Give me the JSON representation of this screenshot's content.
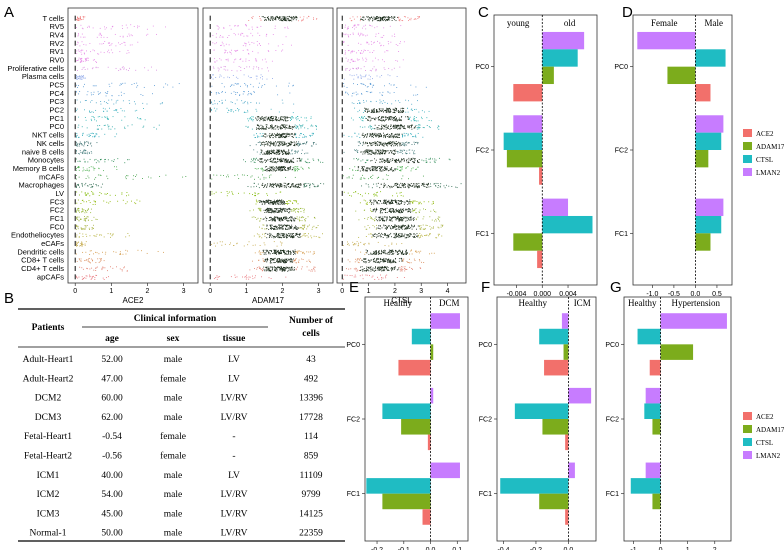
{
  "panel_labels": {
    "A": "A",
    "B": "B",
    "C": "C",
    "D": "D",
    "E": "E",
    "F": "F",
    "G": "G"
  },
  "chart_data": [
    {
      "id": "A",
      "type": "scatter",
      "title": "Gene expression by cell type (jitter/strip plot)",
      "cell_types": [
        "T cells",
        "RV5",
        "RV4",
        "RV2",
        "RV1",
        "RV0",
        "Proliferative cells",
        "Plasma cells",
        "PC5",
        "PC4",
        "PC3",
        "PC2",
        "PC1",
        "PC0",
        "NKT cells",
        "NK cells",
        "naive B cells",
        "Monocytes",
        "Memory B cells",
        "mCAFs",
        "Macrophages",
        "LV",
        "FC3",
        "FC2",
        "FC1",
        "FC0",
        "Endotheliocytes",
        "eCAFs",
        "Dendritic cells",
        "CD8+ T cells",
        "CD4+ T cells",
        "apCAFs"
      ],
      "colors": [
        "#f08080",
        "#e68ae6",
        "#e68ae6",
        "#e68ae6",
        "#e68ae6",
        "#e68ae6",
        "#d98de0",
        "#8fa8e8",
        "#5b9bd5",
        "#5b9bd5",
        "#4da6c8",
        "#3fb0c0",
        "#33b5b5",
        "#2aa7a7",
        "#2ca9b9",
        "#3a6e6e",
        "#4a8080",
        "#2e8b57",
        "#4caf50",
        "#43a047",
        "#2d6a4f",
        "#7fb800",
        "#8db600",
        "#92b530",
        "#9bb23a",
        "#a8b040",
        "#b5b03a",
        "#c4a94a",
        "#d49a4a",
        "#d98b5a",
        "#e07b6a",
        "#e8737a"
      ],
      "genes": [
        {
          "name": "ACE2",
          "xticks": [
            0,
            1,
            2,
            3
          ],
          "xlim": [
            -0.2,
            3.4
          ],
          "mean": [
            0,
            0,
            0,
            0,
            0,
            0,
            0,
            0,
            0,
            0,
            0,
            0,
            0,
            0.3,
            0,
            0,
            0,
            0,
            0,
            0,
            0,
            0,
            0,
            0,
            0,
            0,
            0,
            0,
            0,
            0,
            0,
            0
          ],
          "max": [
            0.3,
            2.5,
            2.5,
            1.9,
            1.8,
            0.6,
            2.5,
            0.3,
            3.2,
            2.5,
            2.5,
            2.0,
            2.0,
            2.5,
            1.2,
            0.6,
            0.5,
            1.5,
            1.2,
            3.2,
            0.8,
            1.5,
            1.8,
            0.5,
            0.6,
            0.5,
            1.8,
            0.3,
            2.5,
            0.8,
            1.5,
            1.0
          ]
        },
        {
          "name": "ADAM17",
          "xticks": [
            0,
            1,
            2,
            3
          ],
          "xlim": [
            -0.2,
            3.4
          ],
          "mean": [
            1.9,
            0.2,
            0.2,
            0.2,
            0.2,
            0.2,
            0.2,
            0.2,
            0.3,
            0.3,
            0.3,
            0.3,
            1.7,
            1.8,
            1.9,
            1.9,
            1.8,
            1.9,
            1.9,
            0.3,
            2.0,
            0.2,
            1.7,
            1.8,
            1.9,
            2.0,
            2.0,
            0.3,
            1.9,
            1.9,
            1.9,
            0.3
          ],
          "max": [
            3.0,
            2.2,
            2.1,
            2.3,
            2.1,
            2.2,
            2.0,
            1.8,
            2.4,
            2.2,
            2.3,
            2.4,
            2.8,
            3.0,
            2.9,
            3.0,
            2.7,
            3.2,
            2.8,
            2.5,
            3.3,
            2.1,
            2.5,
            2.7,
            2.9,
            3.0,
            3.1,
            2.0,
            2.9,
            2.8,
            2.9,
            2.1
          ]
        },
        {
          "name": "CTSL",
          "xticks": [
            0,
            1,
            2,
            3,
            4
          ],
          "xlim": [
            -0.2,
            4.7
          ],
          "mean": [
            1.4,
            0.2,
            0.2,
            0.2,
            0.2,
            0.2,
            0.2,
            0.2,
            0.3,
            0.3,
            0.3,
            1.6,
            1.7,
            2.0,
            1.5,
            1.5,
            1.3,
            2.0,
            1.3,
            0.3,
            2.3,
            0.2,
            1.8,
            1.9,
            2.0,
            2.1,
            2.0,
            0.3,
            1.7,
            1.5,
            1.4,
            0.3
          ],
          "max": [
            3.0,
            2.4,
            2.3,
            2.6,
            2.3,
            2.4,
            2.2,
            2.1,
            3.3,
            3.0,
            3.1,
            3.3,
            3.5,
            3.8,
            3.2,
            3.1,
            2.9,
            4.1,
            2.9,
            3.1,
            4.5,
            2.4,
            3.5,
            3.6,
            3.7,
            3.9,
            3.9,
            2.3,
            3.5,
            3.2,
            3.1,
            2.5
          ]
        }
      ]
    },
    {
      "id": "C",
      "type": "bar",
      "orientation": "horizontal",
      "header_left": "young",
      "header_right": "old",
      "categories": [
        "PC0",
        "FC2",
        "FC1"
      ],
      "xticks": [
        "-0.004",
        "0.000",
        "0.004"
      ],
      "xlim": [
        -0.0075,
        0.0085
      ],
      "series": [
        {
          "name": "ACE2",
          "values": [
            -0.0045,
            -0.0005,
            -0.0008
          ]
        },
        {
          "name": "ADAM17",
          "values": [
            0.0018,
            -0.0055,
            -0.0045
          ]
        },
        {
          "name": "CTSL",
          "values": [
            0.0055,
            -0.006,
            0.0078
          ]
        },
        {
          "name": "LMAN2",
          "values": [
            0.0065,
            -0.0045,
            0.004
          ]
        }
      ]
    },
    {
      "id": "D",
      "type": "bar",
      "orientation": "horizontal",
      "header_left": "Female",
      "header_right": "Male",
      "categories": [
        "PC0",
        "FC2",
        "FC1"
      ],
      "xticks": [
        "-1.0",
        "-0.5",
        "0.0",
        "0.5"
      ],
      "xlim": [
        -1.45,
        0.85
      ],
      "series": [
        {
          "name": "ACE2",
          "values": [
            0.35,
            0.0,
            0.0
          ]
        },
        {
          "name": "ADAM17",
          "values": [
            -0.65,
            0.3,
            0.35
          ]
        },
        {
          "name": "CTSL",
          "values": [
            0.7,
            0.6,
            0.6
          ]
        },
        {
          "name": "LMAN2",
          "values": [
            -1.35,
            0.65,
            0.65
          ]
        }
      ]
    },
    {
      "id": "E",
      "type": "bar",
      "orientation": "horizontal",
      "header_left": "Healthy",
      "header_right": "DCM",
      "categories": [
        "PC0",
        "FC2",
        "FC1"
      ],
      "xticks": [
        "-0.2",
        "-0.1",
        "0.0",
        "0.1"
      ],
      "xlim": [
        -0.245,
        0.14
      ],
      "series": [
        {
          "name": "ACE2",
          "values": [
            -0.12,
            -0.01,
            -0.03
          ]
        },
        {
          "name": "ADAM17",
          "values": [
            0.01,
            -0.11,
            -0.18
          ]
        },
        {
          "name": "CTSL",
          "values": [
            -0.07,
            -0.18,
            -0.24
          ]
        },
        {
          "name": "LMAN2",
          "values": [
            0.11,
            0.01,
            0.11
          ]
        }
      ]
    },
    {
      "id": "F",
      "type": "bar",
      "orientation": "horizontal",
      "header_left": "Healthy",
      "header_right": "ICM",
      "categories": [
        "PC0",
        "FC2",
        "FC1"
      ],
      "xticks": [
        "-0.4",
        "-0.2",
        "0.0"
      ],
      "xlim": [
        -0.44,
        0.17
      ],
      "series": [
        {
          "name": "ACE2",
          "values": [
            -0.15,
            -0.02,
            -0.02
          ]
        },
        {
          "name": "ADAM17",
          "values": [
            -0.03,
            -0.16,
            -0.18
          ]
        },
        {
          "name": "CTSL",
          "values": [
            -0.18,
            -0.33,
            -0.42
          ]
        },
        {
          "name": "LMAN2",
          "values": [
            -0.04,
            0.14,
            0.04
          ]
        }
      ]
    },
    {
      "id": "G",
      "type": "bar",
      "orientation": "horizontal",
      "header_left": "Healthy",
      "header_right": "Hypertension",
      "categories": [
        "PC0",
        "FC2",
        "FC1"
      ],
      "xticks": [
        "-1",
        "0",
        "1",
        "2"
      ],
      "xlim": [
        -1.35,
        2.6
      ],
      "series": [
        {
          "name": "ACE2",
          "values": [
            -0.4,
            0.0,
            0.0
          ]
        },
        {
          "name": "ADAM17",
          "values": [
            1.2,
            -0.3,
            -0.3
          ]
        },
        {
          "name": "CTSL",
          "values": [
            -0.85,
            -0.6,
            -1.1
          ]
        },
        {
          "name": "LMAN2",
          "values": [
            2.45,
            -0.55,
            -0.55
          ]
        }
      ]
    }
  ],
  "legend": {
    "items": [
      {
        "name": "ACE2",
        "color": "#f2706b"
      },
      {
        "name": "ADAM17",
        "color": "#7cac1c"
      },
      {
        "name": "CTSL",
        "color": "#1fbcc3"
      },
      {
        "name": "LMAN2",
        "color": "#c77cff"
      }
    ]
  },
  "table": {
    "header": {
      "patients": "Patients",
      "clinical": "Clinical information",
      "age": "age",
      "sex": "sex",
      "tissue": "tissue",
      "number_line1": "Number of",
      "number_line2": "cells"
    },
    "rows": [
      {
        "patient": "Adult-Heart1",
        "age": "52.00",
        "sex": "male",
        "tissue": "LV",
        "cells": "43"
      },
      {
        "patient": "Adult-Heart2",
        "age": "47.00",
        "sex": "female",
        "tissue": "LV",
        "cells": "492"
      },
      {
        "patient": "DCM2",
        "age": "60.00",
        "sex": "male",
        "tissue": "LV/RV",
        "cells": "13396"
      },
      {
        "patient": "DCM3",
        "age": "62.00",
        "sex": "male",
        "tissue": "LV/RV",
        "cells": "17728"
      },
      {
        "patient": "Fetal-Heart1",
        "age": "-0.54",
        "sex": "female",
        "tissue": "-",
        "cells": "114"
      },
      {
        "patient": "Fetal-Heart2",
        "age": "-0.56",
        "sex": "female",
        "tissue": "-",
        "cells": "859"
      },
      {
        "patient": "ICM1",
        "age": "40.00",
        "sex": "male",
        "tissue": "LV",
        "cells": "11109"
      },
      {
        "patient": "ICM2",
        "age": "54.00",
        "sex": "male",
        "tissue": "LV/RV",
        "cells": "9799"
      },
      {
        "patient": "ICM3",
        "age": "45.00",
        "sex": "male",
        "tissue": "LV/RV",
        "cells": "14125"
      },
      {
        "patient": "Normal-1",
        "age": "50.00",
        "sex": "male",
        "tissue": "LV/RV",
        "cells": "22359"
      }
    ]
  }
}
